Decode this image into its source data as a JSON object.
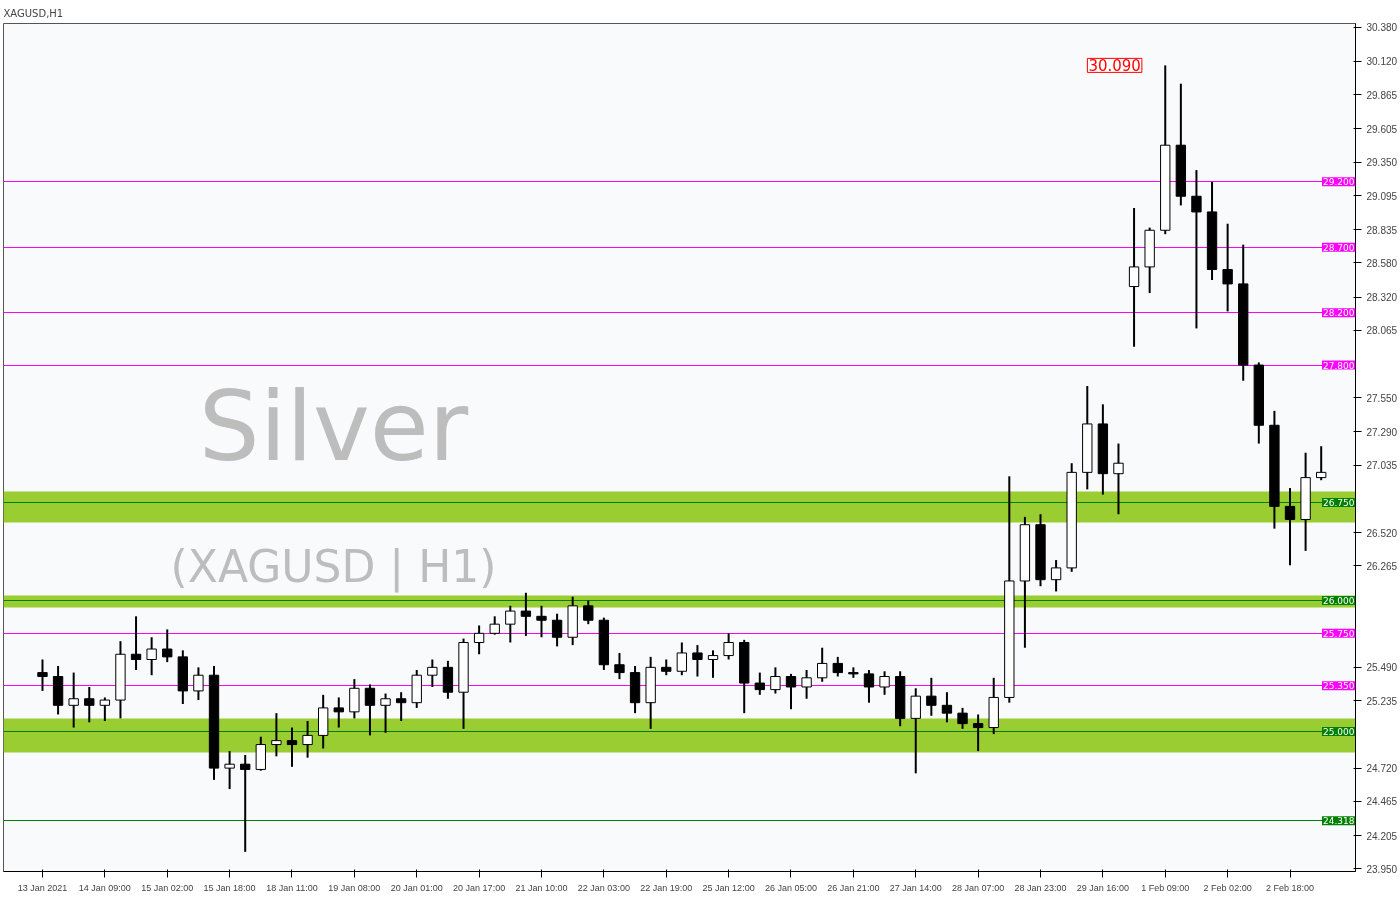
{
  "chart_data": {
    "type": "candlestick",
    "title": "XAGUSD,H1",
    "categories": [
      "13 Jan 2021",
      null,
      null,
      null,
      "14 Jan 09:00",
      null,
      null,
      null,
      "15 Jan 02:00",
      null,
      null,
      null,
      "15 Jan 18:00",
      null,
      null,
      null,
      "18 Jan 11:00",
      null,
      null,
      null,
      "19 Jan 08:00",
      null,
      null,
      null,
      "20 Jan 01:00",
      null,
      null,
      null,
      "20 Jan 17:00",
      null,
      null,
      null,
      "21 Jan 10:00",
      null,
      null,
      null,
      "22 Jan 03:00",
      null,
      null,
      null,
      "22 Jan 19:00",
      null,
      null,
      null,
      "25 Jan 12:00",
      null,
      null,
      null,
      "26 Jan 05:00",
      null,
      null,
      null,
      "26 Jan 21:00",
      null,
      null,
      null,
      "27 Jan 14:00",
      null,
      null,
      null,
      "28 Jan 07:00",
      null,
      null,
      null,
      "28 Jan 23:00",
      null,
      null,
      null,
      "29 Jan 16:00",
      null,
      null,
      null,
      "1 Feb 09:00",
      null,
      null,
      null,
      "2 Feb 02:00",
      null,
      null,
      null,
      "2 Feb 18:00",
      null,
      null
    ],
    "ohlc": [
      [
        25.45,
        25.55,
        25.31,
        25.42
      ],
      [
        25.42,
        25.5,
        25.13,
        25.2
      ],
      [
        25.2,
        25.45,
        25.03,
        25.25
      ],
      [
        25.25,
        25.34,
        25.07,
        25.2
      ],
      [
        25.2,
        25.26,
        25.08,
        25.24
      ],
      [
        25.24,
        25.69,
        25.1,
        25.59
      ],
      [
        25.59,
        25.88,
        25.47,
        25.55
      ],
      [
        25.55,
        25.72,
        25.43,
        25.63
      ],
      [
        25.63,
        25.78,
        25.53,
        25.57
      ],
      [
        25.57,
        25.62,
        25.21,
        25.31
      ],
      [
        25.31,
        25.49,
        25.24,
        25.43
      ],
      [
        25.43,
        25.5,
        24.63,
        24.72
      ],
      [
        24.72,
        24.85,
        24.56,
        24.75
      ],
      [
        24.75,
        24.82,
        24.08,
        24.71
      ],
      [
        24.71,
        24.96,
        24.7,
        24.9
      ],
      [
        24.9,
        25.14,
        24.81,
        24.93
      ],
      [
        24.93,
        25.03,
        24.73,
        24.9
      ],
      [
        24.9,
        25.08,
        24.8,
        24.97
      ],
      [
        24.97,
        25.28,
        24.87,
        25.18
      ],
      [
        25.18,
        25.26,
        25.03,
        25.15
      ],
      [
        25.15,
        25.4,
        25.1,
        25.33
      ],
      [
        25.33,
        25.36,
        24.97,
        25.2
      ],
      [
        25.2,
        25.29,
        24.99,
        25.25
      ],
      [
        25.25,
        25.3,
        25.08,
        25.22
      ],
      [
        25.22,
        25.47,
        25.18,
        25.43
      ],
      [
        25.43,
        25.55,
        25.34,
        25.49
      ],
      [
        25.49,
        25.54,
        25.25,
        25.3
      ],
      [
        25.3,
        25.71,
        25.02,
        25.68
      ],
      [
        25.68,
        25.81,
        25.59,
        25.75
      ],
      [
        25.75,
        25.88,
        25.74,
        25.82
      ],
      [
        25.82,
        25.96,
        25.68,
        25.92
      ],
      [
        25.92,
        26.06,
        25.73,
        25.88
      ],
      [
        25.88,
        25.96,
        25.72,
        25.85
      ],
      [
        25.85,
        25.9,
        25.65,
        25.72
      ],
      [
        25.72,
        26.03,
        25.66,
        25.96
      ],
      [
        25.96,
        26.0,
        25.82,
        25.85
      ],
      [
        25.85,
        25.87,
        25.47,
        25.51
      ],
      [
        25.51,
        25.6,
        25.4,
        25.45
      ],
      [
        25.45,
        25.5,
        25.14,
        25.22
      ],
      [
        25.22,
        25.57,
        25.02,
        25.49
      ],
      [
        25.49,
        25.55,
        25.43,
        25.46
      ],
      [
        25.46,
        25.68,
        25.43,
        25.6
      ],
      [
        25.6,
        25.66,
        25.42,
        25.55
      ],
      [
        25.55,
        25.62,
        25.41,
        25.58
      ],
      [
        25.58,
        25.75,
        25.55,
        25.68
      ],
      [
        25.68,
        25.7,
        25.14,
        25.37
      ],
      [
        25.37,
        25.45,
        25.28,
        25.32
      ],
      [
        25.32,
        25.49,
        25.29,
        25.42
      ],
      [
        25.42,
        25.44,
        25.17,
        25.34
      ],
      [
        25.34,
        25.47,
        25.25,
        25.41
      ],
      [
        25.41,
        25.64,
        25.38,
        25.52
      ],
      [
        25.52,
        25.57,
        25.42,
        25.45
      ],
      [
        25.45,
        25.49,
        25.41,
        25.44
      ],
      [
        25.44,
        25.47,
        25.22,
        25.34
      ],
      [
        25.34,
        25.46,
        25.28,
        25.42
      ],
      [
        25.42,
        25.46,
        25.04,
        25.1
      ],
      [
        25.1,
        25.33,
        24.68,
        25.27
      ],
      [
        25.27,
        25.41,
        25.12,
        25.2
      ],
      [
        25.2,
        25.3,
        25.07,
        25.14
      ],
      [
        25.14,
        25.18,
        25.02,
        25.06
      ],
      [
        25.06,
        25.13,
        24.85,
        25.03
      ],
      [
        25.03,
        25.41,
        24.98,
        25.26
      ],
      [
        25.26,
        26.95,
        25.22,
        26.15
      ],
      [
        26.15,
        26.64,
        25.64,
        26.58
      ],
      [
        26.58,
        26.66,
        26.11,
        26.16
      ],
      [
        26.16,
        26.31,
        26.07,
        26.25
      ],
      [
        26.25,
        27.05,
        26.22,
        26.98
      ],
      [
        26.98,
        27.64,
        26.85,
        27.35
      ],
      [
        27.35,
        27.5,
        26.81,
        26.97
      ],
      [
        26.97,
        27.2,
        26.66,
        27.05
      ],
      [
        28.4,
        29.0,
        27.94,
        28.55
      ],
      [
        28.55,
        28.85,
        28.35,
        28.83
      ],
      [
        28.83,
        30.09,
        28.8,
        29.48
      ],
      [
        29.48,
        29.95,
        29.02,
        29.09
      ],
      [
        29.09,
        29.29,
        28.08,
        28.97
      ],
      [
        28.97,
        29.2,
        28.45,
        28.53
      ],
      [
        28.53,
        28.88,
        28.21,
        28.42
      ],
      [
        28.42,
        28.72,
        27.68,
        27.8
      ],
      [
        27.8,
        27.82,
        27.2,
        27.34
      ],
      [
        27.34,
        27.45,
        26.55,
        26.72
      ],
      [
        26.72,
        26.86,
        26.27,
        26.62
      ],
      [
        26.62,
        27.13,
        26.38,
        26.94
      ],
      [
        26.94,
        27.18,
        26.92,
        26.98
      ]
    ],
    "ylim": [
      23.93,
      30.41
    ],
    "yticks": [
      {
        "value": 30.38,
        "label": "30.380"
      },
      {
        "value": 30.12,
        "label": "30.120"
      },
      29.865,
      29.605,
      {
        "value": 29.35,
        "label": "29.350"
      },
      29.095,
      28.835,
      {
        "value": 28.58,
        "label": "28.580"
      },
      {
        "value": 28.32,
        "label": "28.320"
      },
      28.065,
      {
        "value": 27.55,
        "label": "27.550"
      },
      {
        "value": 27.29,
        "label": "27.290"
      },
      27.035,
      {
        "value": 26.52,
        "label": "26.520"
      },
      26.265,
      {
        "value": 25.49,
        "label": "25.490"
      },
      25.235,
      {
        "value": 24.72,
        "label": "24.720"
      },
      24.465,
      24.205,
      {
        "value": 23.95,
        "label": "23.950"
      }
    ],
    "ref_lines": [
      {
        "axis": "y",
        "value": 29.2,
        "label": "29.200",
        "color": "#ff00ff"
      },
      {
        "axis": "y",
        "value": 28.7,
        "label": "28.700",
        "color": "#ff00ff"
      },
      {
        "axis": "y",
        "value": 28.2,
        "label": "28.200",
        "color": "#ff00ff"
      },
      {
        "axis": "y",
        "value": 27.8,
        "label": "27.800",
        "color": "#ff00ff"
      },
      {
        "axis": "y",
        "value": 26.75,
        "label": "26.750",
        "color": "#007f00"
      },
      {
        "axis": "y",
        "value": 26.0,
        "label": "26.000",
        "color": "#007f00"
      },
      {
        "axis": "y",
        "value": 25.75,
        "label": "25.750",
        "color": "#ff00ff"
      },
      {
        "axis": "y",
        "value": 25.35,
        "label": "25.350",
        "color": "#ff00ff"
      },
      {
        "axis": "y",
        "value": 25.0,
        "label": "25.000",
        "color": "#007f00"
      },
      {
        "axis": "y",
        "value": 24.318,
        "label": "24.318",
        "color": "#007f00"
      }
    ],
    "bands": [
      {
        "axis": "y",
        "from": 26.6,
        "to": 26.83,
        "color": "#9acd32"
      },
      {
        "axis": "y",
        "from": 25.95,
        "to": 26.04,
        "color": "#9acd32"
      },
      {
        "axis": "y",
        "from": 24.84,
        "to": 25.1,
        "color": "#9acd32"
      }
    ],
    "annotations": [
      "30.090",
      "Silver",
      "(XAGUSD | H1)"
    ]
  }
}
